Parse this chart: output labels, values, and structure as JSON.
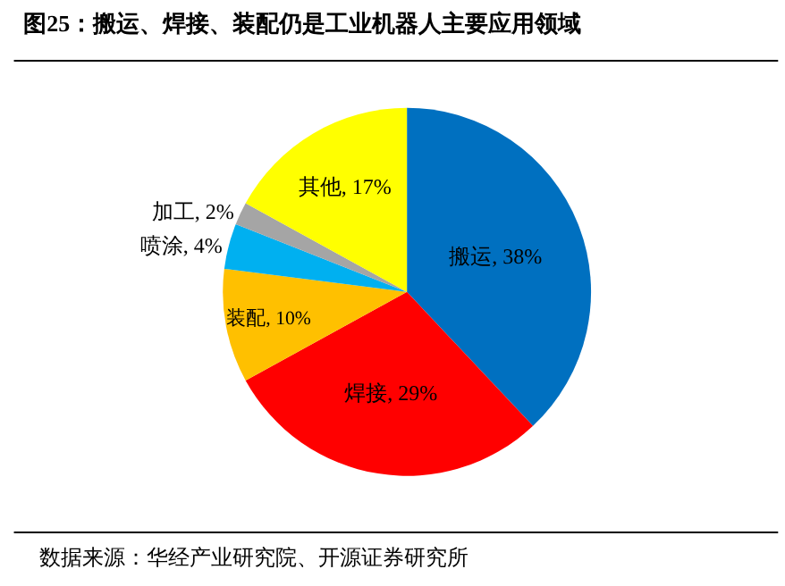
{
  "chart_data": {
    "type": "pie",
    "title": "图25：搬运、焊接、装配仍是工业机器人主要应用领域",
    "categories": [
      "搬运",
      "焊接",
      "装配",
      "喷涂",
      "加工",
      "其他"
    ],
    "values": [
      38,
      29,
      10,
      4,
      2,
      17
    ],
    "value_labels": [
      "38%",
      "29%",
      "10%",
      "4%",
      "2%",
      "17%"
    ],
    "colors": [
      "#0070c0",
      "#ff0000",
      "#ffc000",
      "#00b0f0",
      "#a5a5a5",
      "#ffff00"
    ],
    "legend": false,
    "annotations": [
      "数据来源：华经产业研究院、开源证券研究所"
    ]
  }
}
